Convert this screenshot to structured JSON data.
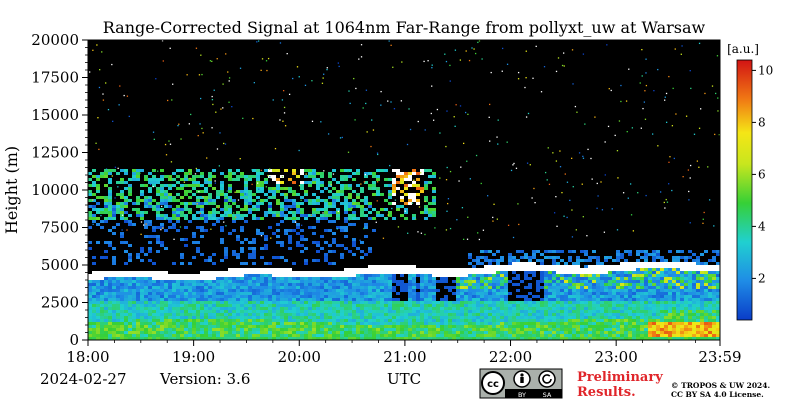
{
  "chart_data": {
    "type": "heatmap",
    "title": "Range-Corrected Signal at 1064nm Far-Range from pollyxt_uw at Warsaw",
    "xlabel": "UTC",
    "ylabel": "Height (m)",
    "x_ticks": [
      "18:00",
      "19:00",
      "20:00",
      "21:00",
      "22:00",
      "23:00",
      "23:59"
    ],
    "xlim_hours": [
      18.0,
      23.983
    ],
    "y_ticks": [
      0,
      2500,
      5000,
      7500,
      10000,
      12500,
      15000,
      17500,
      20000
    ],
    "ylim": [
      0,
      20000
    ],
    "colorbar": {
      "label": "[a.u.]",
      "ticks": [
        2,
        4,
        6,
        8,
        10
      ],
      "range": [
        0.4,
        10.4
      ],
      "colormap": "jet-like (blue-green-yellow-red)"
    },
    "features": [
      {
        "name": "boundary_layer",
        "height_range_m": [
          0,
          2500
        ],
        "value_level": "3-5 (cyan-green)"
      },
      {
        "name": "elevated_aerosol",
        "height_range_m": [
          2500,
          4200
        ],
        "value_level": "1-3 (blue)"
      },
      {
        "name": "cloud_top_band",
        "height_m": 4600,
        "value_level": ">10 (saturated white)"
      },
      {
        "name": "cirrus",
        "height_range_m": [
          8000,
          11500
        ],
        "time_range": [
          "18:00",
          "21:15"
        ],
        "value_level": "3-8"
      }
    ]
  },
  "footer": {
    "date": "2024-02-27",
    "version": "Version: 3.6",
    "preliminary_line1": "Preliminary",
    "preliminary_line2": "Results.",
    "copyright_line1": "© TROPOS & UW 2024.",
    "copyright_line2": "CC BY SA 4.0 License.",
    "license_badge": "cc-by-sa-badge",
    "badge_text_by": "BY",
    "badge_text_sa": "SA"
  },
  "colors": {
    "background_signal": "#000000",
    "preliminary_text": "#e0252a"
  }
}
